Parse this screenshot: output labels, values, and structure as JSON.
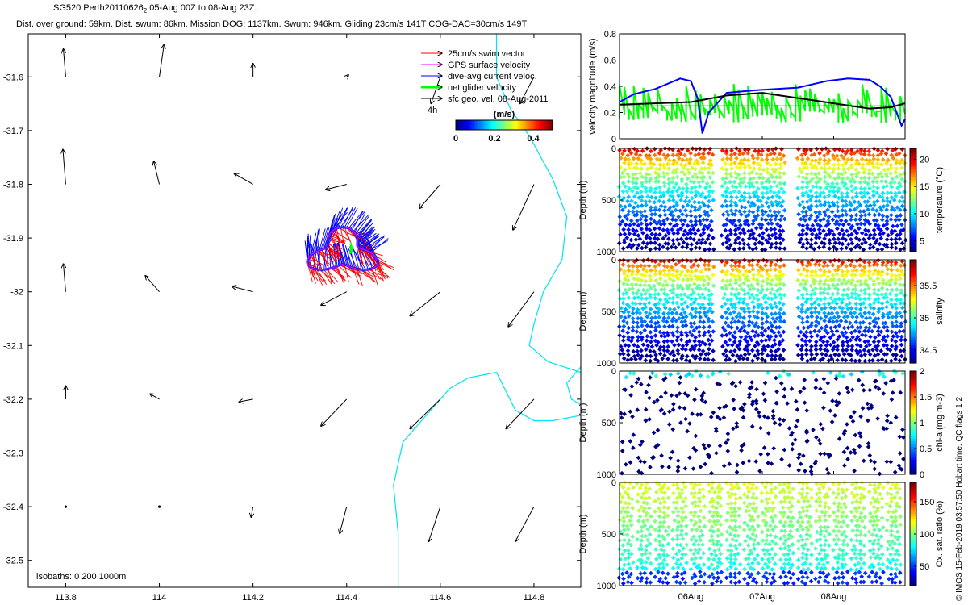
{
  "header": {
    "line1_pre": "SG520 Perth20110626",
    "line1_sub": "2",
    "line1_post": " 05-Aug 00Z to 08-Aug 23Z.",
    "line2": "Dist. over ground: 59km. Dist. swum: 86km. Mission DOG: 1137km. Swum: 946km. Gliding 23cm/s 141T COG-DAC=30cm/s 149T"
  },
  "footer": "© IMOS 15-Feb-2019 03:57:50 Hobart time. QC flags 1  2",
  "colors": {
    "swim": "#ff0000",
    "gps": "#ff00ff",
    "dac": "#0000ff",
    "net": "#00ff00",
    "sfc": "#000000",
    "isobath": "#00e5ee",
    "vel_black": "#000000"
  },
  "chart_data": [
    {
      "type": "map",
      "xlim": [
        113.72,
        114.9
      ],
      "ylim": [
        -32.55,
        -31.52
      ],
      "xticks": [
        "113.8",
        "114",
        "114.2",
        "114.4",
        "114.6",
        "114.8"
      ],
      "yticks": [
        "-31.6",
        "-31.7",
        "-31.8",
        "-31.9",
        "-32",
        "-32.1",
        "-32.2",
        "-32.3",
        "-32.4",
        "-32.5"
      ],
      "legend": {
        "entries": [
          {
            "label": "25cm/s swim vector",
            "color": "#ff0000"
          },
          {
            "label": "GPS surface velocity",
            "color": "#ff00ff"
          },
          {
            "label": "dive-avg current veloc.",
            "color": "#0000ff"
          },
          {
            "label": "net glider velocity",
            "color": "#00ff00"
          },
          {
            "label": "sfc geo. vel. 08-Aug-2011",
            "color": "#000000"
          }
        ],
        "time_label": "4h"
      },
      "colorbar": {
        "label": "(m/s)",
        "ticks": [
          "0",
          "0.2",
          "0.4"
        ],
        "range": [
          0,
          0.5
        ]
      },
      "isobath_label": "isobaths: 0   200   1000m",
      "geostrophic_vectors": [
        {
          "lon": 113.8,
          "lat": -31.6,
          "dx": -0.005,
          "dy": 0.052
        },
        {
          "lon": 114.0,
          "lat": -31.6,
          "dx": 0.01,
          "dy": 0.06
        },
        {
          "lon": 114.2,
          "lat": -31.6,
          "dx": 0.0,
          "dy": 0.025
        },
        {
          "lon": 114.4,
          "lat": -31.6,
          "dx": 0.004,
          "dy": 0.004
        },
        {
          "lon": 114.6,
          "lat": -31.6,
          "dx": -0.02,
          "dy": -0.05
        },
        {
          "lon": 114.8,
          "lat": -31.6,
          "dx": -0.03,
          "dy": -0.05
        },
        {
          "lon": 113.8,
          "lat": -31.8,
          "dx": -0.006,
          "dy": 0.065
        },
        {
          "lon": 114.0,
          "lat": -31.8,
          "dx": -0.012,
          "dy": 0.043
        },
        {
          "lon": 114.2,
          "lat": -31.8,
          "dx": -0.04,
          "dy": 0.02
        },
        {
          "lon": 114.4,
          "lat": -31.8,
          "dx": -0.045,
          "dy": -0.01
        },
        {
          "lon": 114.6,
          "lat": -31.8,
          "dx": -0.045,
          "dy": -0.045
        },
        {
          "lon": 114.8,
          "lat": -31.8,
          "dx": -0.045,
          "dy": -0.085
        },
        {
          "lon": 113.8,
          "lat": -32.0,
          "dx": -0.005,
          "dy": 0.052
        },
        {
          "lon": 114.0,
          "lat": -32.0,
          "dx": -0.03,
          "dy": 0.03
        },
        {
          "lon": 114.2,
          "lat": -32.0,
          "dx": -0.045,
          "dy": 0.01
        },
        {
          "lon": 114.4,
          "lat": -32.0,
          "dx": -0.055,
          "dy": -0.025
        },
        {
          "lon": 114.6,
          "lat": -32.0,
          "dx": -0.065,
          "dy": -0.045
        },
        {
          "lon": 114.8,
          "lat": -32.0,
          "dx": -0.055,
          "dy": -0.065
        },
        {
          "lon": 113.8,
          "lat": -32.2,
          "dx": 0.0,
          "dy": 0.025
        },
        {
          "lon": 114.0,
          "lat": -32.2,
          "dx": -0.02,
          "dy": 0.01
        },
        {
          "lon": 114.2,
          "lat": -32.2,
          "dx": -0.03,
          "dy": -0.005
        },
        {
          "lon": 114.4,
          "lat": -32.2,
          "dx": -0.055,
          "dy": -0.05
        },
        {
          "lon": 114.6,
          "lat": -32.2,
          "dx": -0.065,
          "dy": -0.055
        },
        {
          "lon": 114.8,
          "lat": -32.2,
          "dx": -0.06,
          "dy": -0.055
        },
        {
          "lon": 113.8,
          "lat": -32.4,
          "dx": 0.0,
          "dy": 0.002
        },
        {
          "lon": 114.0,
          "lat": -32.4,
          "dx": 0.0,
          "dy": 0.001
        },
        {
          "lon": 114.2,
          "lat": -32.4,
          "dx": -0.004,
          "dy": -0.02
        },
        {
          "lon": 114.4,
          "lat": -32.4,
          "dx": -0.015,
          "dy": -0.05
        },
        {
          "lon": 114.6,
          "lat": -32.4,
          "dx": -0.025,
          "dy": -0.065
        },
        {
          "lon": 114.8,
          "lat": -32.4,
          "dx": -0.04,
          "dy": -0.065
        }
      ],
      "isobath_line1": [
        [
          114.72,
          -31.52
        ],
        [
          114.72,
          -31.6
        ],
        [
          114.75,
          -31.66
        ],
        [
          114.79,
          -31.71
        ],
        [
          114.84,
          -31.79
        ],
        [
          114.87,
          -31.86
        ],
        [
          114.86,
          -31.94
        ],
        [
          114.82,
          -32.0
        ],
        [
          114.8,
          -32.06
        ],
        [
          114.79,
          -32.1
        ],
        [
          114.83,
          -32.13
        ],
        [
          114.9,
          -32.15
        ]
      ],
      "isobath_line2": [
        [
          114.51,
          -32.55
        ],
        [
          114.51,
          -32.45
        ],
        [
          114.5,
          -32.36
        ],
        [
          114.52,
          -32.28
        ],
        [
          114.57,
          -32.23
        ],
        [
          114.62,
          -32.18
        ],
        [
          114.66,
          -32.16
        ],
        [
          114.72,
          -32.15
        ],
        [
          114.76,
          -32.22
        ],
        [
          114.8,
          -32.24
        ],
        [
          114.84,
          -32.24
        ],
        [
          114.9,
          -32.23
        ]
      ],
      "isobath_line3": [
        [
          114.9,
          -32.14
        ],
        [
          114.87,
          -32.17
        ],
        [
          114.88,
          -32.2
        ],
        [
          114.9,
          -32.21
        ]
      ],
      "glider_center": [
        114.4,
        -31.92
      ]
    },
    {
      "type": "line",
      "ylabel": "velocity magnitude (m/s)",
      "ylim": [
        0,
        0.8
      ],
      "yticks": [
        "0",
        "0.2",
        "0.4",
        "0.6",
        "0.8"
      ],
      "x_range_days": [
        0,
        4
      ],
      "series": [
        {
          "color": "#0000ff",
          "x": [
            0,
            0.2,
            0.5,
            0.85,
            1.0,
            1.1,
            1.16,
            1.25,
            1.5,
            1.9,
            2.2,
            2.5,
            2.9,
            3.2,
            3.5,
            3.65,
            3.8,
            3.95,
            4.0
          ],
          "y": [
            0.28,
            0.34,
            0.38,
            0.46,
            0.44,
            0.3,
            0.04,
            0.2,
            0.35,
            0.37,
            0.38,
            0.39,
            0.44,
            0.46,
            0.45,
            0.4,
            0.32,
            0.1,
            0.15
          ]
        },
        {
          "color": "#000000",
          "x": [
            0,
            0.5,
            1.0,
            1.5,
            2.0,
            2.5,
            3.0,
            3.5,
            3.8,
            4.0
          ],
          "y": [
            0.26,
            0.27,
            0.28,
            0.33,
            0.35,
            0.31,
            0.27,
            0.23,
            0.24,
            0.27
          ]
        },
        {
          "color": "#ff0000",
          "x": [
            0,
            4
          ],
          "y": [
            0.25,
            0.25
          ]
        }
      ],
      "xticks": [
        "06Aug",
        "07Aug",
        "08Aug"
      ],
      "xticks_days": [
        1.0,
        2.0,
        3.0
      ]
    },
    {
      "type": "scatter",
      "ylabel": "Depth (m)",
      "cbar_label": "temperature (°C)",
      "ylim": [
        1000,
        0
      ],
      "yticks": [
        "0",
        "500",
        "1000"
      ],
      "cbar_range": [
        3,
        22
      ],
      "cbar_ticks": [
        "5",
        "10",
        "15",
        "20"
      ],
      "gaps_days": [
        [
          1.34,
          1.42
        ],
        [
          2.34,
          2.5
        ]
      ]
    },
    {
      "type": "scatter",
      "ylabel": "Depth (m)",
      "cbar_label": "salinity",
      "ylim": [
        1000,
        0
      ],
      "yticks": [
        "0",
        "500",
        "1000"
      ],
      "cbar_range": [
        34.3,
        35.9
      ],
      "cbar_ticks": [
        "34.5",
        "35",
        "35.5"
      ],
      "gaps_days": [
        [
          1.34,
          1.42
        ],
        [
          2.34,
          2.5
        ]
      ]
    },
    {
      "type": "scatter",
      "ylabel": "Depth (m)",
      "cbar_label": "chl-a (mg m-3)",
      "ylim": [
        1000,
        0
      ],
      "yticks": [
        "0",
        "500",
        "1000"
      ],
      "cbar_range": [
        0,
        2
      ],
      "cbar_ticks": [
        "0",
        "0.5",
        "1",
        "1.5",
        "2"
      ]
    },
    {
      "type": "scatter",
      "ylabel": "Depth (m)",
      "cbar_label": "Ox. sat. ratio (%)",
      "ylim": [
        1000,
        0
      ],
      "yticks": [
        "0",
        "500",
        "1000"
      ],
      "cbar_range": [
        20,
        180
      ],
      "cbar_ticks": [
        "50",
        "100",
        "150"
      ],
      "xticks": [
        "06Aug",
        "07Aug",
        "08Aug"
      ],
      "xticks_days": [
        1.0,
        2.0,
        3.0
      ]
    }
  ]
}
